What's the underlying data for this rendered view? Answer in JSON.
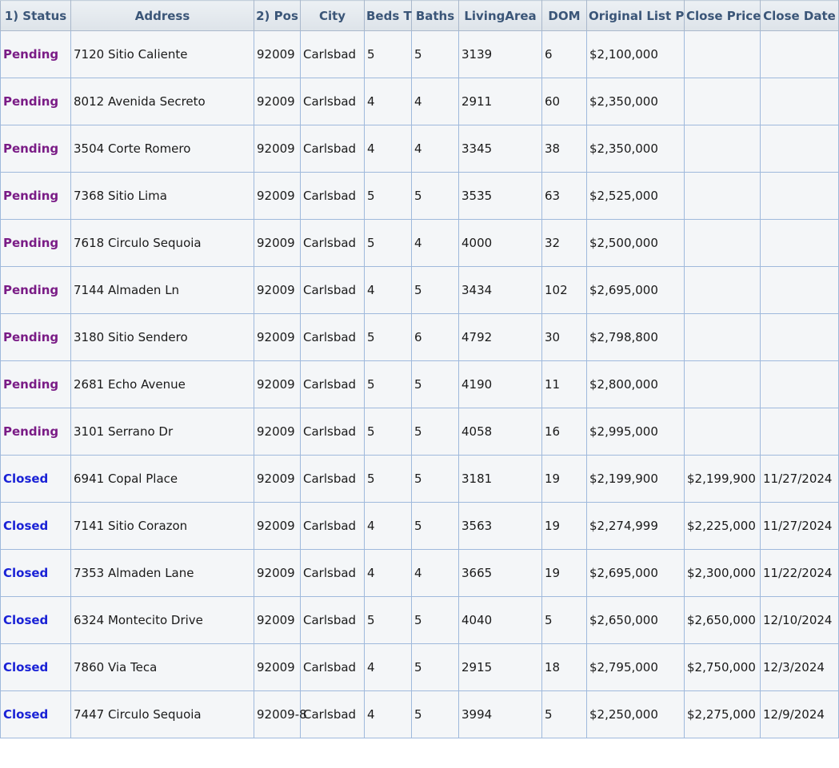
{
  "table": {
    "headers": [
      "1) Status",
      "Address",
      "2) Pos",
      "City",
      "Beds T",
      "Baths",
      "LivingArea",
      "DOM",
      "Original List P",
      "Close Price",
      "Close Date"
    ],
    "rows": [
      {
        "status": "Pending",
        "address": "7120 Sitio Caliente",
        "zip": "92009",
        "city": "Carlsbad",
        "beds": "5",
        "baths": "5",
        "area": "3139",
        "dom": "6",
        "olp": "$2,100,000",
        "close_price": "",
        "close_date": ""
      },
      {
        "status": "Pending",
        "address": "8012 Avenida Secreto",
        "zip": "92009",
        "city": "Carlsbad",
        "beds": "4",
        "baths": "4",
        "area": "2911",
        "dom": "60",
        "olp": "$2,350,000",
        "close_price": "",
        "close_date": ""
      },
      {
        "status": "Pending",
        "address": "3504 Corte Romero",
        "zip": "92009",
        "city": "Carlsbad",
        "beds": "4",
        "baths": "4",
        "area": "3345",
        "dom": "38",
        "olp": "$2,350,000",
        "close_price": "",
        "close_date": ""
      },
      {
        "status": "Pending",
        "address": "7368 Sitio Lima",
        "zip": "92009",
        "city": "Carlsbad",
        "beds": "5",
        "baths": "5",
        "area": "3535",
        "dom": "63",
        "olp": "$2,525,000",
        "close_price": "",
        "close_date": ""
      },
      {
        "status": "Pending",
        "address": "7618 Circulo Sequoia",
        "zip": "92009",
        "city": "Carlsbad",
        "beds": "5",
        "baths": "4",
        "area": "4000",
        "dom": "32",
        "olp": "$2,500,000",
        "close_price": "",
        "close_date": ""
      },
      {
        "status": "Pending",
        "address": "7144 Almaden Ln",
        "zip": "92009",
        "city": "Carlsbad",
        "beds": "4",
        "baths": "5",
        "area": "3434",
        "dom": "102",
        "olp": "$2,695,000",
        "close_price": "",
        "close_date": ""
      },
      {
        "status": "Pending",
        "address": "3180 Sitio Sendero",
        "zip": "92009",
        "city": "Carlsbad",
        "beds": "5",
        "baths": "6",
        "area": "4792",
        "dom": "30",
        "olp": "$2,798,800",
        "close_price": "",
        "close_date": ""
      },
      {
        "status": "Pending",
        "address": "2681 Echo Avenue",
        "zip": "92009",
        "city": "Carlsbad",
        "beds": "5",
        "baths": "5",
        "area": "4190",
        "dom": "11",
        "olp": "$2,800,000",
        "close_price": "",
        "close_date": ""
      },
      {
        "status": "Pending",
        "address": "3101 Serrano Dr",
        "zip": "92009",
        "city": "Carlsbad",
        "beds": "5",
        "baths": "5",
        "area": "4058",
        "dom": "16",
        "olp": "$2,995,000",
        "close_price": "",
        "close_date": ""
      },
      {
        "status": "Closed",
        "address": "6941 Copal Place",
        "zip": "92009",
        "city": "Carlsbad",
        "beds": "5",
        "baths": "5",
        "area": "3181",
        "dom": "19",
        "olp": "$2,199,900",
        "close_price": "$2,199,900",
        "close_date": "11/27/2024"
      },
      {
        "status": "Closed",
        "address": "7141 Sitio Corazon",
        "zip": "92009",
        "city": "Carlsbad",
        "beds": "4",
        "baths": "5",
        "area": "3563",
        "dom": "19",
        "olp": "$2,274,999",
        "close_price": "$2,225,000",
        "close_date": "11/27/2024"
      },
      {
        "status": "Closed",
        "address": "7353 Almaden Lane",
        "zip": "92009",
        "city": "Carlsbad",
        "beds": "4",
        "baths": "4",
        "area": "3665",
        "dom": "19",
        "olp": "$2,695,000",
        "close_price": "$2,300,000",
        "close_date": "11/22/2024"
      },
      {
        "status": "Closed",
        "address": "6324 Montecito Drive",
        "zip": "92009",
        "city": "Carlsbad",
        "beds": "5",
        "baths": "5",
        "area": "4040",
        "dom": "5",
        "olp": "$2,650,000",
        "close_price": "$2,650,000",
        "close_date": "12/10/2024"
      },
      {
        "status": "Closed",
        "address": "7860 Via Teca",
        "zip": "92009",
        "city": "Carlsbad",
        "beds": "4",
        "baths": "5",
        "area": "2915",
        "dom": "18",
        "olp": "$2,795,000",
        "close_price": "$2,750,000",
        "close_date": "12/3/2024"
      },
      {
        "status": "Closed",
        "address": "7447 Circulo Sequoia",
        "zip": "92009-8",
        "city": "Carlsbad",
        "beds": "4",
        "baths": "5",
        "area": "3994",
        "dom": "5",
        "olp": "$2,250,000",
        "close_price": "$2,275,000",
        "close_date": "12/9/2024"
      }
    ]
  },
  "colors": {
    "pending_status": "#7a1c86",
    "closed_status": "#1a22d6",
    "header_text": "#3b5678",
    "cell_border": "#9fb9dc",
    "cell_background": "#f4f6f8"
  }
}
